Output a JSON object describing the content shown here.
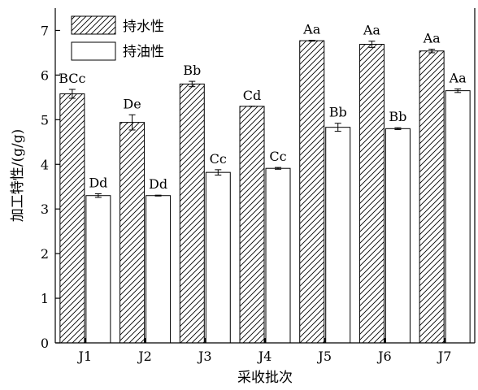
{
  "chart_data": {
    "type": "bar",
    "xlabel": "采收批次",
    "ylabel": "加工特性/(g/g)",
    "categories": [
      "J1",
      "J2",
      "J3",
      "J4",
      "J5",
      "J6",
      "J7"
    ],
    "ylim": [
      0,
      7.5
    ],
    "yticks": [
      "0",
      "1",
      "2",
      "3",
      "4",
      "5",
      "6",
      "7"
    ],
    "grid": false,
    "legend_position": "top-left",
    "series": [
      {
        "name": "持水性",
        "pattern": "diagonal-hatch",
        "values": [
          5.58,
          4.94,
          5.8,
          5.3,
          6.77,
          6.69,
          6.54
        ],
        "errors": [
          0.1,
          0.17,
          0.06,
          0.0,
          0.01,
          0.07,
          0.04
        ],
        "labels": [
          "BCc",
          "De",
          "Bb",
          "Cd",
          "Aa",
          "Aa",
          "Aa"
        ]
      },
      {
        "name": "持油性",
        "pattern": "white",
        "values": [
          3.3,
          3.3,
          3.82,
          3.91,
          4.83,
          4.8,
          5.65
        ],
        "errors": [
          0.04,
          0.01,
          0.06,
          0.02,
          0.09,
          0.02,
          0.04
        ],
        "labels": [
          "Dd",
          "Dd",
          "Cc",
          "Cc",
          "Bb",
          "Bb",
          "Aa"
        ]
      }
    ]
  }
}
